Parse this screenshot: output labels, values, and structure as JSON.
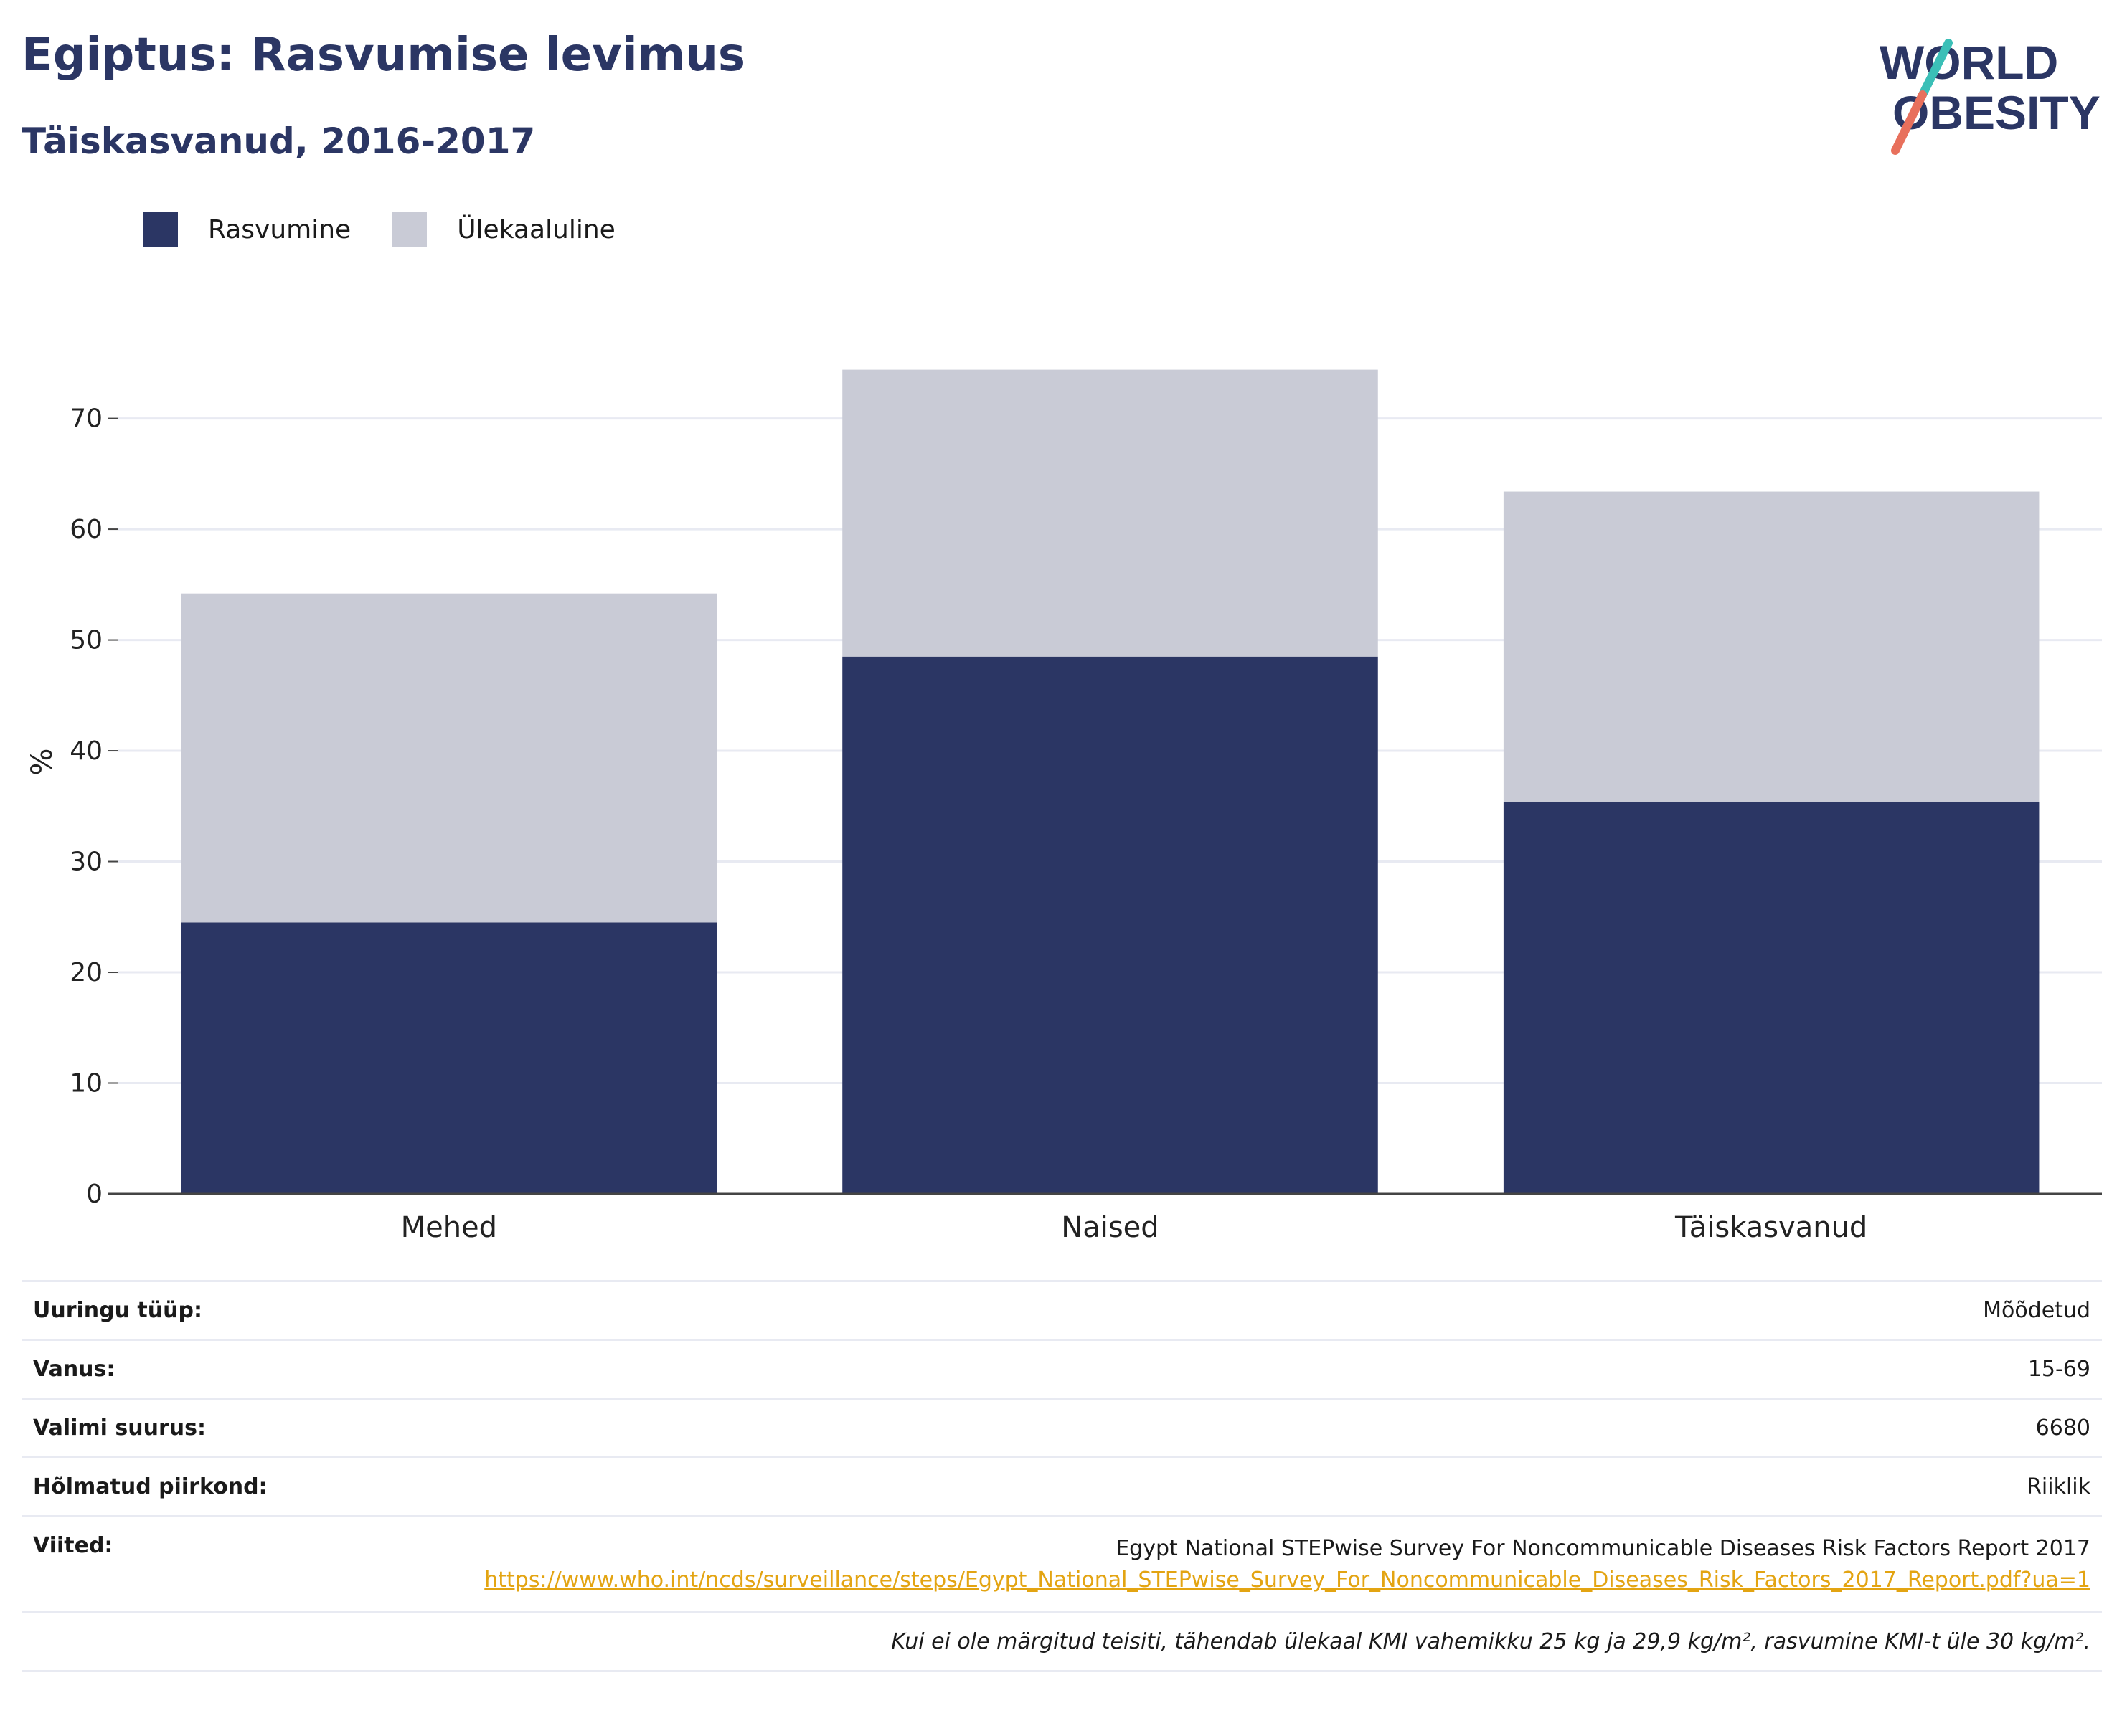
{
  "header": {
    "title": "Egiptus: Rasvumise levimus",
    "subtitle": "Täiskasvanud, 2016-2017"
  },
  "logo": {
    "line1": "WORLD",
    "line2": "OBESITY",
    "colors": {
      "text": "#2b3664",
      "slash_top": "#3bbfb7",
      "slash_bottom": "#e8705c"
    }
  },
  "colors": {
    "obesity": "#2b3664",
    "overweight": "#c9cbd6",
    "grid": "#e8eaf2",
    "axis": "#444444"
  },
  "chart_data": {
    "type": "bar",
    "stacked": true,
    "categories": [
      "Mehed",
      "Naised",
      "Täiskasvanud"
    ],
    "series": [
      {
        "name": "Rasvumine",
        "values": [
          24.5,
          48.5,
          35.4
        ]
      },
      {
        "name": "Ülekaaluline",
        "values": [
          29.7,
          25.9,
          28.0
        ]
      }
    ],
    "ylabel": "%",
    "ylim": [
      0,
      78
    ],
    "yticks": [
      0,
      10,
      20,
      30,
      40,
      50,
      60,
      70
    ],
    "grid": true,
    "legend": "top-left"
  },
  "info": {
    "rows": [
      {
        "label": "Uuringu tüüp:",
        "value": "Mõõdetud"
      },
      {
        "label": "Vanus:",
        "value": "15-69"
      },
      {
        "label": "Valimi suurus:",
        "value": "6680"
      },
      {
        "label": "Hõlmatud piirkond:",
        "value": "Riiklik"
      }
    ],
    "references_label": "Viited:",
    "reference_title": "Egypt National STEPwise Survey For Noncommunicable Diseases Risk Factors Report 2017",
    "reference_url": "https://www.who.int/ncds/surveillance/steps/Egypt_National_STEPwise_Survey_For_Noncommunicable_Diseases_Risk_Factors_2017_Report.pdf?ua=1",
    "footnote": "Kui ei ole märgitud teisiti, tähendab ülekaal KMI vahemikku 25 kg ja 29,9 kg/m², rasvumine KMI-t üle 30 kg/m²."
  }
}
